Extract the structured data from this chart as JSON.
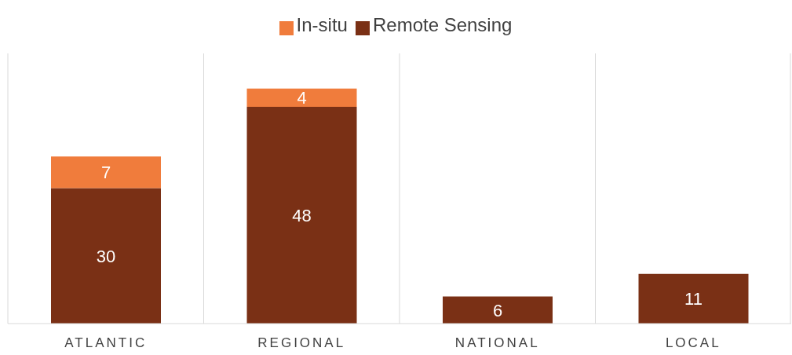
{
  "chart_data": {
    "type": "bar",
    "stacked": true,
    "categories": [
      "ATLANTIC",
      "REGIONAL",
      "NATIONAL",
      "LOCAL"
    ],
    "series": [
      {
        "name": "Remote Sensing",
        "color": "#7a3015",
        "values": [
          30,
          48,
          6,
          11
        ]
      },
      {
        "name": "In-situ",
        "color": "#f07c3c",
        "values": [
          7,
          4,
          null,
          null
        ]
      }
    ],
    "data_labels": true,
    "legend": "top",
    "grid": "x",
    "tick_labels": "x"
  }
}
